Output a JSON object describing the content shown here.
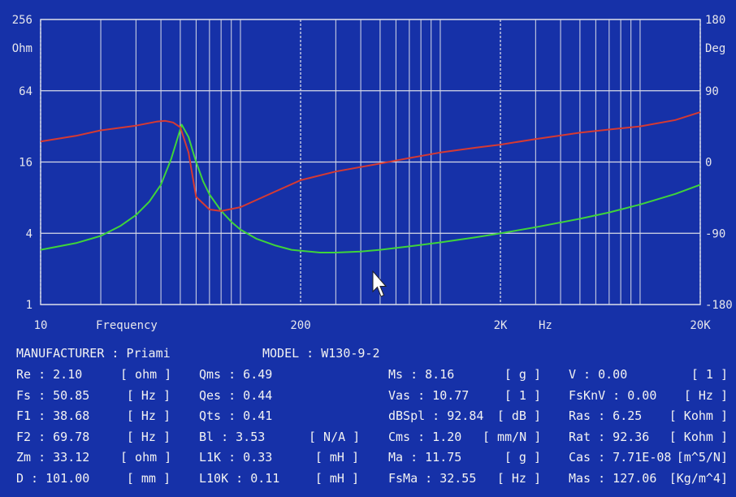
{
  "chart_data": {
    "type": "line",
    "x_scale": "log",
    "x_range": [
      10,
      20000
    ],
    "grid": true,
    "x_ticks": [
      {
        "value": 10,
        "label": "10"
      },
      {
        "value": 200,
        "label": "200"
      },
      {
        "value": 2000,
        "label": "2K"
      },
      {
        "value": 20000,
        "label": "20K"
      }
    ],
    "x_axis_title": "Frequency",
    "x_unit": "Hz",
    "y_left": {
      "scale": "log",
      "range": [
        1,
        256
      ],
      "unit": "Ohm",
      "ticks": [
        {
          "value": 256,
          "label": "256"
        },
        {
          "value": 64,
          "label": "64"
        },
        {
          "value": 16,
          "label": "16"
        },
        {
          "value": 4,
          "label": "4"
        },
        {
          "value": 1,
          "label": "1"
        }
      ]
    },
    "y_right": {
      "scale": "linear",
      "range": [
        -180,
        180
      ],
      "unit": "Deg",
      "ticks": [
        {
          "value": 180,
          "label": "180"
        },
        {
          "value": 90,
          "label": "90"
        },
        {
          "value": 0,
          "label": "0"
        },
        {
          "value": -90,
          "label": "-90"
        },
        {
          "value": -180,
          "label": "-180"
        }
      ]
    },
    "series": [
      {
        "axis": "left",
        "color": "#3fd43a",
        "points": [
          [
            10,
            2.9
          ],
          [
            15,
            3.3
          ],
          [
            20,
            3.8
          ],
          [
            25,
            4.6
          ],
          [
            30,
            5.7
          ],
          [
            35,
            7.4
          ],
          [
            40,
            10.3
          ],
          [
            45,
            17
          ],
          [
            50.85,
            33.1
          ],
          [
            55,
            26
          ],
          [
            60,
            16
          ],
          [
            65,
            11
          ],
          [
            70,
            8.5
          ],
          [
            80,
            6.2
          ],
          [
            90,
            5.0
          ],
          [
            100,
            4.3
          ],
          [
            120,
            3.6
          ],
          [
            150,
            3.15
          ],
          [
            180,
            2.9
          ],
          [
            200,
            2.85
          ],
          [
            250,
            2.75
          ],
          [
            300,
            2.75
          ],
          [
            400,
            2.8
          ],
          [
            500,
            2.9
          ],
          [
            700,
            3.1
          ],
          [
            1000,
            3.35
          ],
          [
            1500,
            3.7
          ],
          [
            2000,
            4.0
          ],
          [
            3000,
            4.5
          ],
          [
            5000,
            5.3
          ],
          [
            7000,
            6.0
          ],
          [
            10000,
            7.0
          ],
          [
            15000,
            8.6
          ],
          [
            20000,
            10.3
          ]
        ]
      },
      {
        "axis": "right",
        "color": "#d63a32",
        "points": [
          [
            10,
            26
          ],
          [
            15,
            33
          ],
          [
            20,
            40
          ],
          [
            30,
            46
          ],
          [
            38,
            51
          ],
          [
            42,
            52
          ],
          [
            46,
            50
          ],
          [
            50,
            44
          ],
          [
            55,
            12
          ],
          [
            60,
            -44
          ],
          [
            70,
            -60
          ],
          [
            80,
            -62
          ],
          [
            100,
            -57
          ],
          [
            150,
            -37
          ],
          [
            200,
            -23
          ],
          [
            300,
            -12
          ],
          [
            500,
            -2
          ],
          [
            700,
            5
          ],
          [
            1000,
            12
          ],
          [
            1500,
            18
          ],
          [
            2000,
            22
          ],
          [
            3000,
            29
          ],
          [
            5000,
            37
          ],
          [
            7000,
            41
          ],
          [
            10000,
            45
          ],
          [
            15000,
            53
          ],
          [
            20000,
            63
          ]
        ]
      }
    ]
  },
  "params": {
    "manufacturer": "MANUFACTURER : Priami",
    "model": "MODEL : W130-9-2",
    "rows": [
      [
        {
          "label": "Re : 2.10",
          "unit": "[ ohm ]"
        },
        {
          "label": "Qms : 6.49",
          "unit": ""
        },
        {
          "label": "Ms : 8.16",
          "unit": "[ g ]"
        },
        {
          "label": "V : 0.00",
          "unit": "[ 1 ]"
        }
      ],
      [
        {
          "label": "Fs : 50.85",
          "unit": "[ Hz ]"
        },
        {
          "label": "Qes : 0.44",
          "unit": ""
        },
        {
          "label": "Vas : 10.77",
          "unit": "[ 1 ]"
        },
        {
          "label": "FsKnV : 0.00",
          "unit": "[ Hz ]"
        }
      ],
      [
        {
          "label": "F1 : 38.68",
          "unit": "[ Hz ]"
        },
        {
          "label": "Qts : 0.41",
          "unit": ""
        },
        {
          "label": "dBSpl : 92.84",
          "unit": "[ dB ]"
        },
        {
          "label": "Ras : 6.25",
          "unit": "[ Kohm ]"
        }
      ],
      [
        {
          "label": "F2 : 69.78",
          "unit": "[ Hz ]"
        },
        {
          "label": "Bl : 3.53",
          "unit": "[ N/A ]"
        },
        {
          "label": "Cms : 1.20",
          "unit": "[ mm/N ]"
        },
        {
          "label": "Rat : 92.36",
          "unit": "[ Kohm ]"
        }
      ],
      [
        {
          "label": "Zm : 33.12",
          "unit": "[ ohm ]"
        },
        {
          "label": "L1K : 0.33",
          "unit": "[ mH ]"
        },
        {
          "label": "Ma : 11.75",
          "unit": "[ g ]"
        },
        {
          "label": "Cas : 7.71E-08",
          "unit": "[m^5/N]"
        }
      ],
      [
        {
          "label": "D : 101.00",
          "unit": "[ mm ]"
        },
        {
          "label": "L10K : 0.11",
          "unit": "[ mH ]"
        },
        {
          "label": "FsMa : 32.55",
          "unit": "[ Hz ]"
        },
        {
          "label": "Mas : 127.06",
          "unit": "[Kg/m^4]"
        }
      ]
    ]
  }
}
